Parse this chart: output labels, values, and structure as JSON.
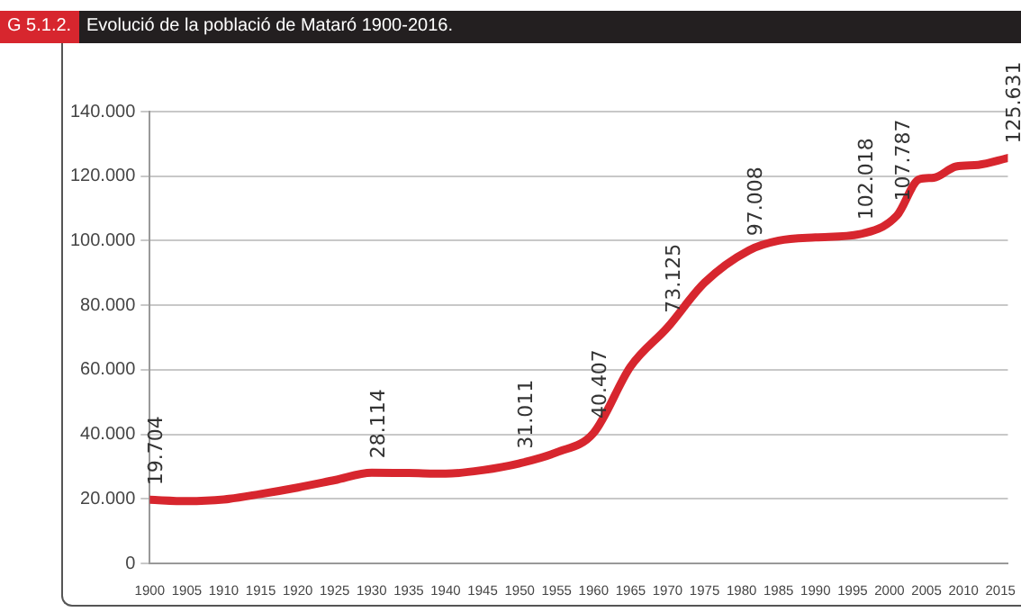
{
  "chart_data": {
    "type": "line",
    "title": "Evolució de la població de Mataró 1900-2016.",
    "subtitle": "G 5.1.2.",
    "x": [
      1900,
      1905,
      1910,
      1915,
      1920,
      1925,
      1930,
      1935,
      1940,
      1945,
      1950,
      1955,
      1960,
      1965,
      1970,
      1975,
      1981,
      1985,
      1990,
      1996,
      2001,
      2004,
      2006,
      2009,
      2012,
      2016
    ],
    "series": [
      {
        "color": "#d7262e",
        "values": [
          19704,
          19300,
          19800,
          21500,
          23500,
          25800,
          28114,
          28000,
          27800,
          28900,
          31011,
          34400,
          40407,
          61000,
          73125,
          87000,
          97008,
          100000,
          101000,
          102018,
          107787,
          119000,
          119500,
          123000,
          123500,
          125631
        ],
        "value_labels": [
          "19.704",
          null,
          null,
          null,
          null,
          null,
          "28.114",
          null,
          null,
          null,
          "31.011",
          null,
          "40.407",
          null,
          "73.125",
          null,
          "97.008",
          null,
          null,
          "102.018",
          "107.787",
          null,
          null,
          null,
          null,
          "125.631"
        ]
      }
    ],
    "xlim": [
      1900,
      2016
    ],
    "xticks": [
      1900,
      1905,
      1910,
      1915,
      1920,
      1925,
      1930,
      1935,
      1940,
      1945,
      1950,
      1955,
      1960,
      1965,
      1970,
      1975,
      1980,
      1985,
      1990,
      1995,
      2000,
      2005,
      2010,
      2015
    ],
    "ylim": [
      0,
      140000
    ],
    "yticks": [
      {
        "value": 0,
        "label": "0"
      },
      {
        "value": 20000,
        "label": "20.000"
      },
      {
        "value": 40000,
        "label": "40.000"
      },
      {
        "value": 60000,
        "label": "60.000"
      },
      {
        "value": 80000,
        "label": "80.000"
      },
      {
        "value": 100000,
        "label": "100.000"
      },
      {
        "value": 120000,
        "label": "120.000"
      },
      {
        "value": 140000,
        "label": "140.000"
      }
    ],
    "grid": "y",
    "legend": false,
    "marker": "none",
    "line_style": "solid"
  }
}
